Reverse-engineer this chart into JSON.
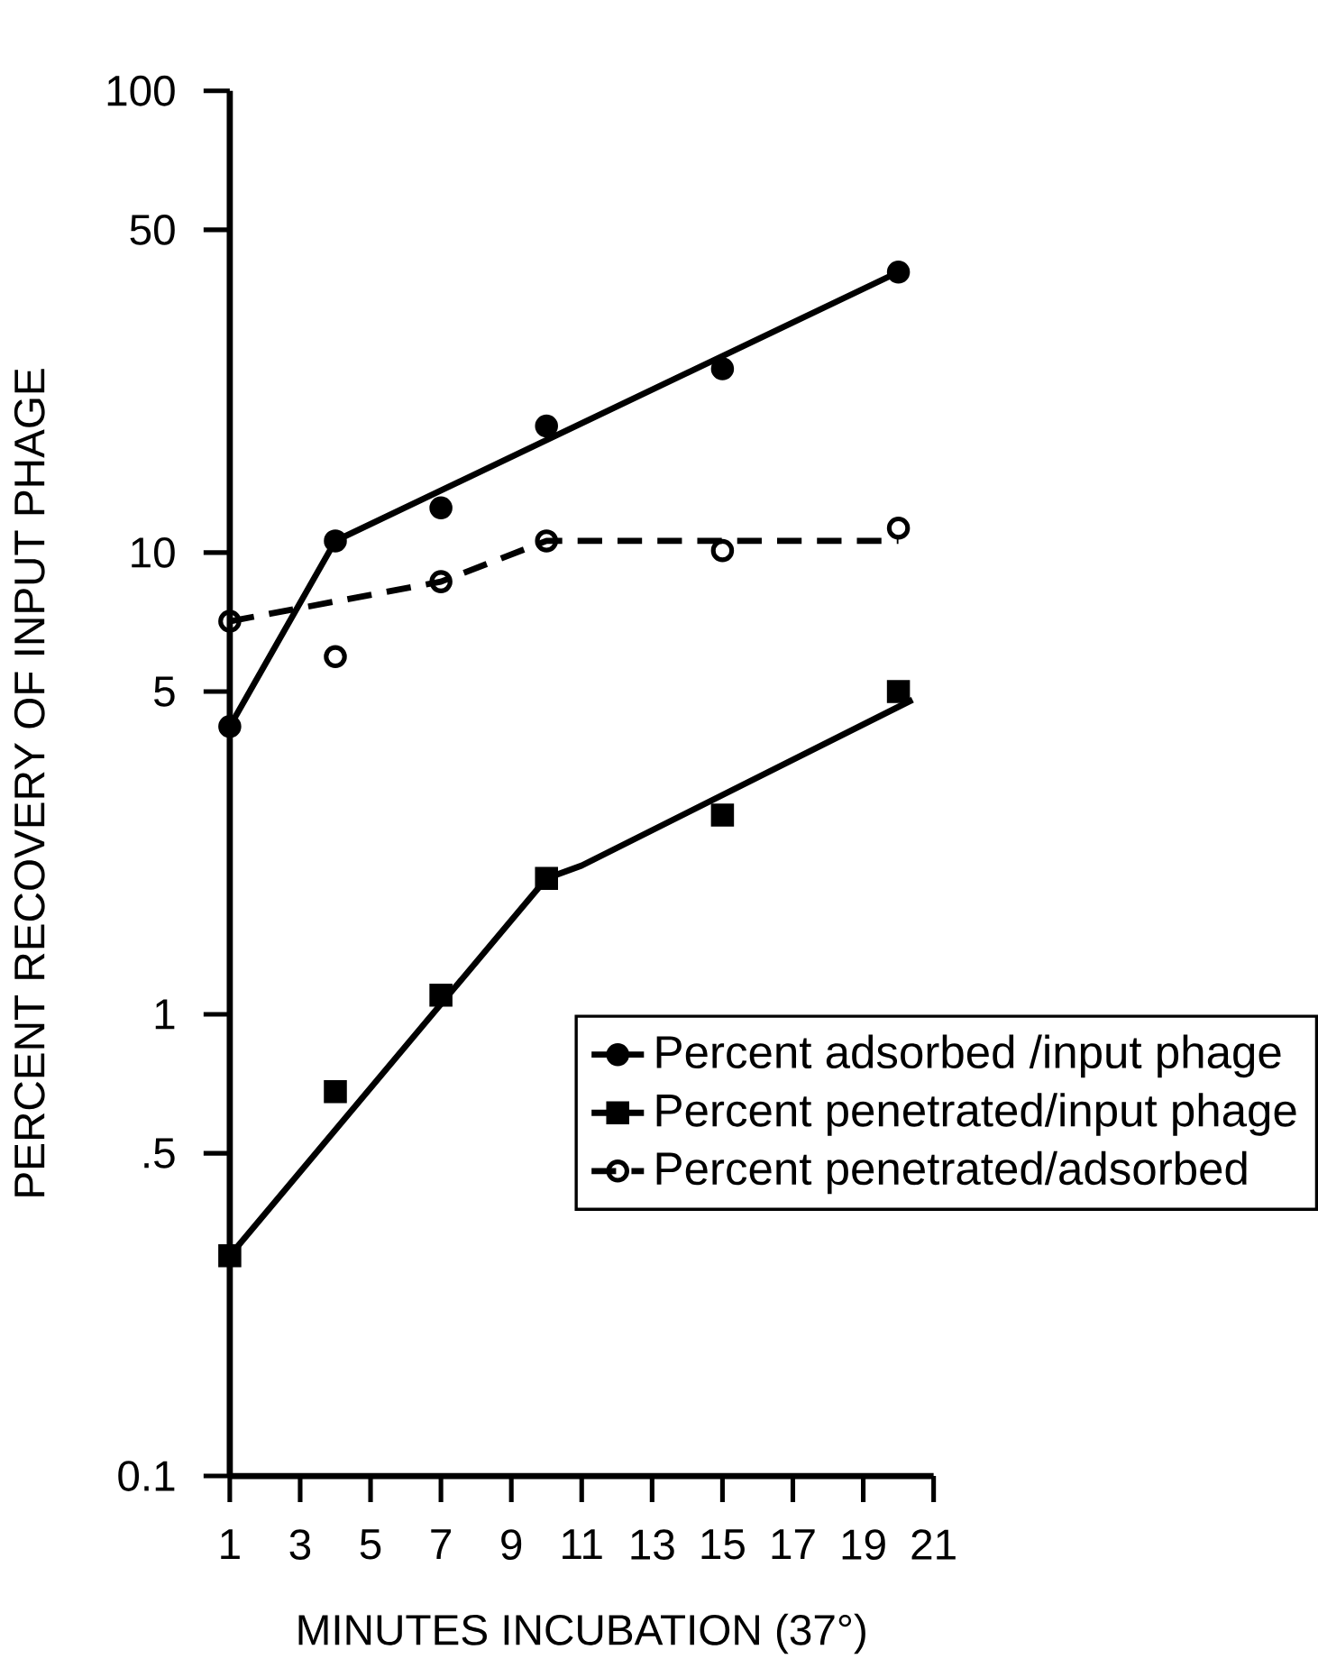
{
  "chart_data": {
    "type": "line",
    "xlabel": "MINUTES INCUBATION (37°)",
    "ylabel": "PERCENT RECOVERY OF INPUT PHAGE",
    "log": "y",
    "legend": "right",
    "xlim": [
      1,
      21
    ],
    "xticks": [
      1,
      3,
      5,
      7,
      9,
      11,
      13,
      15,
      17,
      19,
      21
    ],
    "ylim": [
      0.1,
      100
    ],
    "yticks": [
      0.1,
      {
        "value": 0.5,
        "label": ".5"
      },
      1,
      5,
      10,
      50,
      100
    ],
    "series": [
      {
        "name": "Percent adsorbed /input phage",
        "type": "scatter",
        "marker": "circle",
        "line_style": "solid",
        "color": "#000000",
        "x": [
          1,
          4,
          7,
          10,
          15,
          20
        ],
        "values": [
          4.2,
          10.6,
          12.5,
          18.8,
          25,
          40.5
        ]
      },
      {
        "line_style": "solid",
        "color": "#000000",
        "x": [
          1,
          4,
          20
        ],
        "values": [
          4.2,
          10.6,
          40.5
        ]
      },
      {
        "name": "Percent penetrated/input phage",
        "type": "scatter",
        "marker": "square",
        "line_style": "solid",
        "color": "#000000",
        "x": [
          1,
          4,
          7,
          10,
          15,
          20
        ],
        "values": [
          0.3,
          0.68,
          1.1,
          1.97,
          2.7,
          5.0
        ]
      },
      {
        "line_style": "solid",
        "color": "#000000",
        "x": [
          1,
          10,
          11,
          20.4
        ],
        "values": [
          0.3,
          1.97,
          2.1,
          4.8
        ]
      },
      {
        "name": "Percent penetrated/adsorbed",
        "type": "scatter",
        "marker": "circle-open",
        "line_style": "dashed",
        "color": "#000000",
        "x": [
          1,
          4,
          7,
          10,
          15,
          20
        ],
        "values": [
          7.1,
          5.95,
          8.65,
          10.6,
          10.1,
          11.3
        ]
      },
      {
        "line_style": "dashed",
        "color": "#000000",
        "x": [
          1,
          7,
          10,
          20
        ],
        "values": [
          7.1,
          8.65,
          10.6,
          10.6
        ]
      }
    ]
  }
}
